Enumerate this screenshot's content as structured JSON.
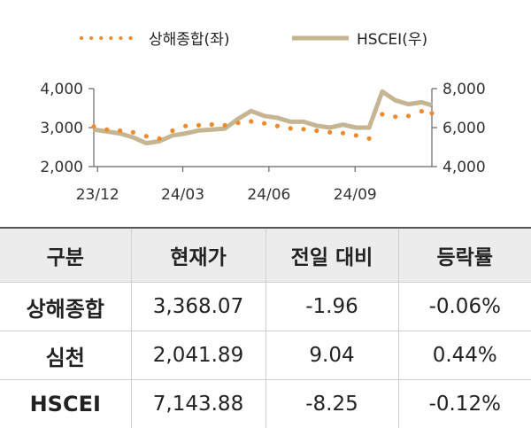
{
  "chart_data": {
    "type": "line",
    "x_ticks": [
      "23/12",
      "24/03",
      "24/06",
      "24/09"
    ],
    "x_range": [
      "2023-11-27",
      "2024-11-22"
    ],
    "left_axis": {
      "range": [
        2000,
        4000
      ],
      "ticks": [
        "2,000",
        "3,000",
        "4,000"
      ]
    },
    "right_axis": {
      "range": [
        4000,
        8000
      ],
      "ticks": [
        "4,000",
        "6,000",
        "8,000"
      ]
    },
    "legend_position": "top",
    "series": [
      {
        "name": "상해종합(좌)",
        "axis": "left",
        "style": "dotted",
        "color": "#f08a2b",
        "points": [
          [
            "2023-11-27",
            3030
          ],
          [
            "2023-12-11",
            2950
          ],
          [
            "2023-12-25",
            2920
          ],
          [
            "2024-01-08",
            2880
          ],
          [
            "2024-01-22",
            2780
          ],
          [
            "2024-02-05",
            2720
          ],
          [
            "2024-02-19",
            2920
          ],
          [
            "2024-03-04",
            3040
          ],
          [
            "2024-03-18",
            3060
          ],
          [
            "2024-04-01",
            3080
          ],
          [
            "2024-04-15",
            3060
          ],
          [
            "2024-04-29",
            3120
          ],
          [
            "2024-05-13",
            3160
          ],
          [
            "2024-05-27",
            3110
          ],
          [
            "2024-06-10",
            3040
          ],
          [
            "2024-06-24",
            2980
          ],
          [
            "2024-07-08",
            2960
          ],
          [
            "2024-07-22",
            2920
          ],
          [
            "2024-08-05",
            2880
          ],
          [
            "2024-08-19",
            2860
          ],
          [
            "2024-09-02",
            2800
          ],
          [
            "2024-09-16",
            2720
          ],
          [
            "2024-09-30",
            3340
          ],
          [
            "2024-10-14",
            3280
          ],
          [
            "2024-10-28",
            3300
          ],
          [
            "2024-11-11",
            3420
          ],
          [
            "2024-11-22",
            3368
          ]
        ]
      },
      {
        "name": "HSCEI(우)",
        "axis": "right",
        "style": "solid",
        "color": "#c5b592",
        "points": [
          [
            "2023-11-27",
            5900
          ],
          [
            "2023-12-11",
            5800
          ],
          [
            "2023-12-25",
            5700
          ],
          [
            "2024-01-08",
            5500
          ],
          [
            "2024-01-22",
            5200
          ],
          [
            "2024-02-05",
            5300
          ],
          [
            "2024-02-19",
            5600
          ],
          [
            "2024-03-04",
            5700
          ],
          [
            "2024-03-18",
            5850
          ],
          [
            "2024-04-01",
            5900
          ],
          [
            "2024-04-15",
            5950
          ],
          [
            "2024-04-29",
            6450
          ],
          [
            "2024-05-13",
            6850
          ],
          [
            "2024-05-27",
            6600
          ],
          [
            "2024-06-10",
            6500
          ],
          [
            "2024-06-24",
            6300
          ],
          [
            "2024-07-08",
            6300
          ],
          [
            "2024-07-22",
            6100
          ],
          [
            "2024-08-05",
            6000
          ],
          [
            "2024-08-19",
            6150
          ],
          [
            "2024-09-02",
            6000
          ],
          [
            "2024-09-16",
            6000
          ],
          [
            "2024-09-30",
            7850
          ],
          [
            "2024-10-14",
            7400
          ],
          [
            "2024-10-28",
            7200
          ],
          [
            "2024-11-11",
            7300
          ],
          [
            "2024-11-22",
            7144
          ]
        ]
      }
    ]
  },
  "table": {
    "headers": [
      "구분",
      "현재가",
      "전일 대비",
      "등락률"
    ],
    "rows": [
      [
        "상해종합",
        "3,368.07",
        "-1.96",
        "-0.06%"
      ],
      [
        "심천",
        "2,041.89",
        "9.04",
        "0.44%"
      ],
      [
        "HSCEI",
        "7,143.88",
        "-8.25",
        "-0.12%"
      ]
    ]
  }
}
